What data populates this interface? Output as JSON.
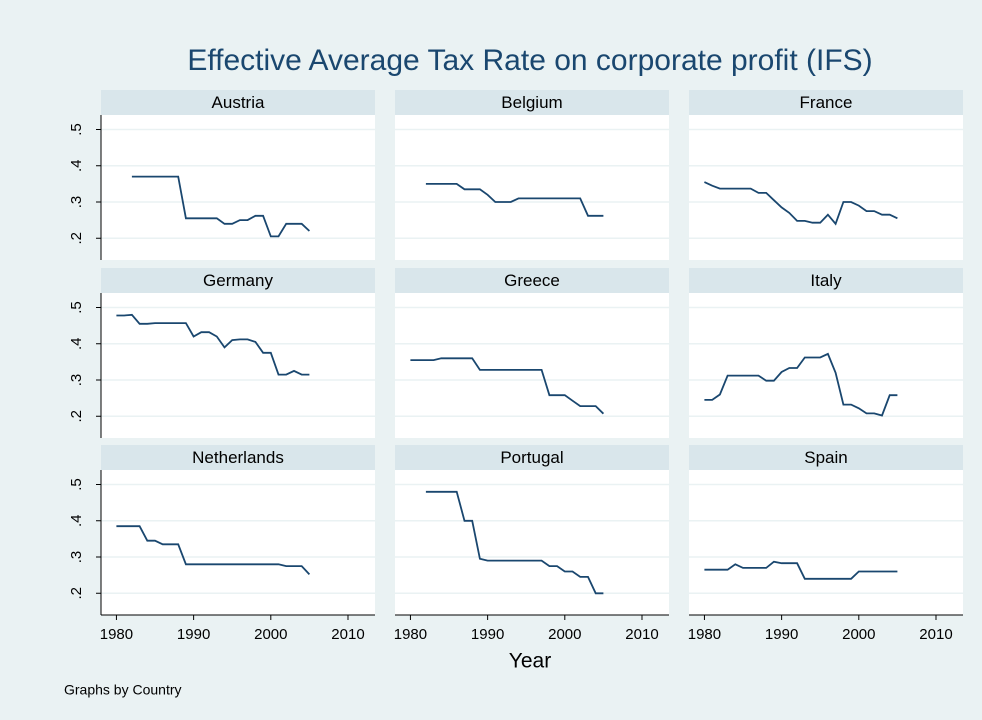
{
  "title": "Effective Average Tax Rate on corporate profit (IFS)",
  "x_label": "Year",
  "note": "Graphs by Country",
  "xlim": [
    1978,
    2013.5
  ],
  "xticks": [
    1980,
    1990,
    2000,
    2010
  ],
  "ylim": [
    0.14,
    0.54
  ],
  "yticks": [
    {
      "value": 0.2,
      "label": ".2"
    },
    {
      "value": 0.3,
      "label": ".3"
    },
    {
      "value": 0.4,
      "label": ".4"
    },
    {
      "value": 0.5,
      "label": ".5"
    }
  ],
  "grid": true,
  "chart_data": [
    {
      "type": "line",
      "title": "Austria",
      "color": "#1a476f",
      "x": [
        1982,
        1983,
        1984,
        1985,
        1986,
        1987,
        1988,
        1989,
        1990,
        1991,
        1992,
        1993,
        1994,
        1995,
        1996,
        1997,
        1998,
        1999,
        2000,
        2001,
        2002,
        2003,
        2004,
        2005
      ],
      "values": [
        0.37,
        0.37,
        0.37,
        0.37,
        0.37,
        0.37,
        0.37,
        0.255,
        0.255,
        0.255,
        0.255,
        0.255,
        0.24,
        0.24,
        0.25,
        0.25,
        0.262,
        0.262,
        0.205,
        0.205,
        0.24,
        0.24,
        0.24,
        0.22
      ]
    },
    {
      "type": "line",
      "title": "Belgium",
      "color": "#1a476f",
      "x": [
        1982,
        1983,
        1984,
        1985,
        1986,
        1987,
        1988,
        1989,
        1990,
        1991,
        1992,
        1993,
        1994,
        1995,
        1996,
        1997,
        1998,
        1999,
        2000,
        2001,
        2002,
        2003,
        2004,
        2005
      ],
      "values": [
        0.35,
        0.35,
        0.35,
        0.35,
        0.35,
        0.335,
        0.335,
        0.335,
        0.32,
        0.3,
        0.3,
        0.3,
        0.31,
        0.31,
        0.31,
        0.31,
        0.31,
        0.31,
        0.31,
        0.31,
        0.31,
        0.262,
        0.262,
        0.262
      ]
    },
    {
      "type": "line",
      "title": "France",
      "color": "#1a476f",
      "x": [
        1980,
        1981,
        1982,
        1983,
        1984,
        1985,
        1986,
        1987,
        1988,
        1989,
        1990,
        1991,
        1992,
        1993,
        1994,
        1995,
        1996,
        1997,
        1998,
        1999,
        2000,
        2001,
        2002,
        2003,
        2004,
        2005
      ],
      "values": [
        0.355,
        0.345,
        0.337,
        0.337,
        0.337,
        0.337,
        0.337,
        0.325,
        0.325,
        0.305,
        0.285,
        0.27,
        0.248,
        0.248,
        0.243,
        0.243,
        0.265,
        0.24,
        0.3,
        0.3,
        0.29,
        0.275,
        0.275,
        0.265,
        0.265,
        0.255
      ]
    },
    {
      "type": "line",
      "title": "Germany",
      "color": "#1a476f",
      "x": [
        1980,
        1981,
        1982,
        1983,
        1984,
        1985,
        1986,
        1987,
        1988,
        1989,
        1990,
        1991,
        1992,
        1993,
        1994,
        1995,
        1996,
        1997,
        1998,
        1999,
        2000,
        2001,
        2002,
        2003,
        2004,
        2005
      ],
      "values": [
        0.478,
        0.478,
        0.48,
        0.455,
        0.455,
        0.457,
        0.457,
        0.457,
        0.457,
        0.457,
        0.42,
        0.432,
        0.432,
        0.42,
        0.39,
        0.41,
        0.412,
        0.412,
        0.405,
        0.375,
        0.375,
        0.315,
        0.315,
        0.325,
        0.315,
        0.315
      ]
    },
    {
      "type": "line",
      "title": "Greece",
      "color": "#1a476f",
      "x": [
        1980,
        1981,
        1982,
        1983,
        1984,
        1985,
        1986,
        1987,
        1988,
        1989,
        1990,
        1991,
        1992,
        1993,
        1994,
        1995,
        1996,
        1997,
        1998,
        1999,
        2000,
        2001,
        2002,
        2003,
        2004,
        2005
      ],
      "values": [
        0.355,
        0.355,
        0.355,
        0.355,
        0.36,
        0.36,
        0.36,
        0.36,
        0.36,
        0.328,
        0.328,
        0.328,
        0.328,
        0.328,
        0.328,
        0.328,
        0.328,
        0.328,
        0.258,
        0.258,
        0.258,
        0.243,
        0.228,
        0.228,
        0.228,
        0.207
      ]
    },
    {
      "type": "line",
      "title": "Italy",
      "color": "#1a476f",
      "x": [
        1980,
        1981,
        1982,
        1983,
        1984,
        1985,
        1986,
        1987,
        1988,
        1989,
        1990,
        1991,
        1992,
        1993,
        1994,
        1995,
        1996,
        1997,
        1998,
        1999,
        2000,
        2001,
        2002,
        2003,
        2004,
        2005
      ],
      "values": [
        0.245,
        0.245,
        0.26,
        0.312,
        0.312,
        0.312,
        0.312,
        0.312,
        0.298,
        0.298,
        0.322,
        0.333,
        0.333,
        0.362,
        0.362,
        0.362,
        0.372,
        0.32,
        0.232,
        0.232,
        0.222,
        0.208,
        0.208,
        0.202,
        0.258,
        0.258
      ]
    },
    {
      "type": "line",
      "title": "Netherlands",
      "color": "#1a476f",
      "x": [
        1980,
        1981,
        1982,
        1983,
        1984,
        1985,
        1986,
        1987,
        1988,
        1989,
        1990,
        1991,
        1992,
        1993,
        1994,
        1995,
        1996,
        1997,
        1998,
        1999,
        2000,
        2001,
        2002,
        2003,
        2004,
        2005
      ],
      "values": [
        0.385,
        0.385,
        0.385,
        0.385,
        0.345,
        0.345,
        0.335,
        0.335,
        0.335,
        0.28,
        0.28,
        0.28,
        0.28,
        0.28,
        0.28,
        0.28,
        0.28,
        0.28,
        0.28,
        0.28,
        0.28,
        0.28,
        0.275,
        0.275,
        0.275,
        0.252
      ]
    },
    {
      "type": "line",
      "title": "Portugal",
      "color": "#1a476f",
      "x": [
        1982,
        1983,
        1984,
        1985,
        1986,
        1987,
        1988,
        1989,
        1990,
        1991,
        1992,
        1993,
        1994,
        1995,
        1996,
        1997,
        1998,
        1999,
        2000,
        2001,
        2002,
        2003,
        2004,
        2005
      ],
      "values": [
        0.48,
        0.48,
        0.48,
        0.48,
        0.48,
        0.4,
        0.4,
        0.295,
        0.29,
        0.29,
        0.29,
        0.29,
        0.29,
        0.29,
        0.29,
        0.29,
        0.275,
        0.275,
        0.26,
        0.26,
        0.245,
        0.245,
        0.2,
        0.2
      ]
    },
    {
      "type": "line",
      "title": "Spain",
      "color": "#1a476f",
      "x": [
        1980,
        1981,
        1982,
        1983,
        1984,
        1985,
        1986,
        1987,
        1988,
        1989,
        1990,
        1991,
        1992,
        1993,
        1994,
        1995,
        1996,
        1997,
        1998,
        1999,
        2000,
        2001,
        2002,
        2003,
        2004,
        2005
      ],
      "values": [
        0.265,
        0.265,
        0.265,
        0.265,
        0.28,
        0.27,
        0.27,
        0.27,
        0.27,
        0.287,
        0.283,
        0.283,
        0.283,
        0.24,
        0.24,
        0.24,
        0.24,
        0.24,
        0.24,
        0.24,
        0.26,
        0.26,
        0.26,
        0.26,
        0.26,
        0.26
      ]
    }
  ]
}
